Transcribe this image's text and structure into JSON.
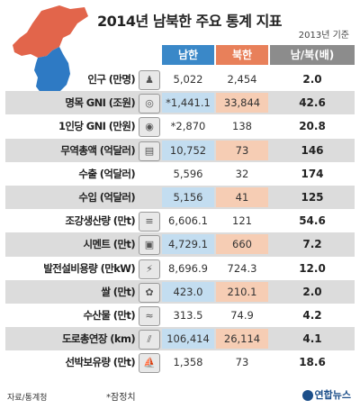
{
  "title": "2014년 남북한 주요 통계 지표",
  "year_note": "2013년 기준",
  "colors": {
    "south": "#3a88c8",
    "north": "#e8805a",
    "ratio": "#8c8c8c",
    "south_highlight": "#c3ddf0",
    "north_highlight": "#f6cdb4"
  },
  "chart_data": {
    "type": "table",
    "columns": [
      "남한",
      "북한",
      "남/북(배)"
    ],
    "rows": [
      {
        "label": "인구 (만명)",
        "icon": "people-icon",
        "south": "5,022",
        "north": "2,454",
        "ratio": "2.0",
        "south_hl": false,
        "north_hl": false
      },
      {
        "label": "명목 GNI (조원)",
        "icon": "coins-icon",
        "south": "*1,441.1",
        "north": "33,844",
        "ratio": "42.6",
        "south_hl": true,
        "north_hl": true
      },
      {
        "label": "1인당 GNI (만원)",
        "icon": "money-bag-icon",
        "south": "*2,870",
        "north": "138",
        "ratio": "20.8",
        "south_hl": false,
        "north_hl": false
      },
      {
        "label": "무역총액 (억달러)",
        "icon": "banknote-icon",
        "south": "10,752",
        "north": "73",
        "ratio": "146",
        "south_hl": true,
        "north_hl": true
      },
      {
        "label": "수출 (억달러)",
        "icon": "",
        "south": "5,596",
        "north": "32",
        "ratio": "174",
        "south_hl": false,
        "north_hl": false
      },
      {
        "label": "수입 (억달러)",
        "icon": "",
        "south": "5,156",
        "north": "41",
        "ratio": "125",
        "south_hl": true,
        "north_hl": true
      },
      {
        "label": "조강생산량 (만t)",
        "icon": "steel-icon",
        "south": "6,606.1",
        "north": "121",
        "ratio": "54.6",
        "south_hl": false,
        "north_hl": false
      },
      {
        "label": "시멘트 (만t)",
        "icon": "cement-icon",
        "south": "4,729.1",
        "north": "660",
        "ratio": "7.2",
        "south_hl": true,
        "north_hl": true
      },
      {
        "label": "발전설비용량 (만kW)",
        "icon": "power-icon",
        "south": "8,696.9",
        "north": "724.3",
        "ratio": "12.0",
        "south_hl": false,
        "north_hl": false
      },
      {
        "label": "쌀 (만t)",
        "icon": "rice-icon",
        "south": "423.0",
        "north": "210.1",
        "ratio": "2.0",
        "south_hl": true,
        "north_hl": true
      },
      {
        "label": "수산물 (만t)",
        "icon": "fish-icon",
        "south": "313.5",
        "north": "74.9",
        "ratio": "4.2",
        "south_hl": false,
        "north_hl": false
      },
      {
        "label": "도로총연장 (km)",
        "icon": "road-icon",
        "south": "106,414",
        "north": "26,114",
        "ratio": "4.1",
        "south_hl": true,
        "north_hl": true
      },
      {
        "label": "선박보유량 (만t)",
        "icon": "ship-icon",
        "south": "1,358",
        "north": "73",
        "ratio": "18.6",
        "south_hl": false,
        "north_hl": false
      }
    ]
  },
  "footer": {
    "source": "자료/통계청",
    "note": "*잠정치",
    "logo": "연합뉴스"
  }
}
